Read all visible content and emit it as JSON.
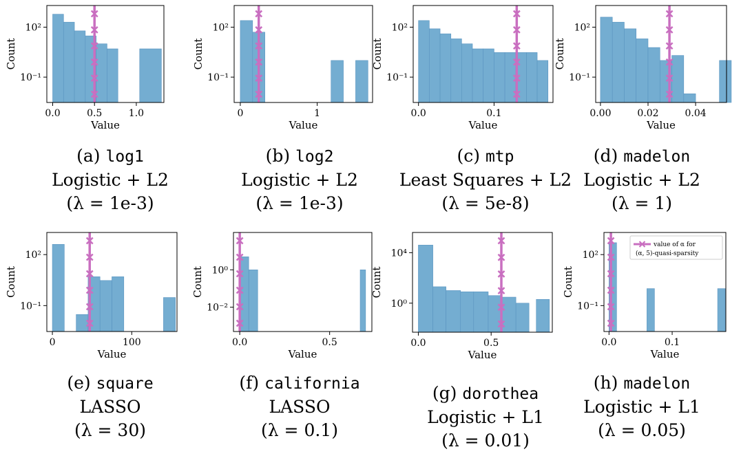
{
  "colors": {
    "bar": "#74add1",
    "bar_edge": "#5a94c0",
    "marker": "#c96fc0",
    "axis": "#000000"
  },
  "legend": {
    "line1": "value of α for",
    "line2": "(α, 5)-quasi-sparsity"
  },
  "chart_data": [
    {
      "type": "bar",
      "xlabel": "Value",
      "ylabel": "Count",
      "yscale": "log",
      "xlim": [
        -0.07,
        1.33
      ],
      "ylim": [
        0.003,
        2000
      ],
      "xticks": [
        0.0,
        0.5,
        1.0
      ],
      "xtick_labels": [
        "0.0",
        "0.5",
        "1.0"
      ],
      "yticks": [
        100,
        0.1
      ],
      "ytick_labels": [
        "10²",
        "10⁻¹"
      ],
      "bins": [
        [
          0.0,
          0.13,
          600
        ],
        [
          0.13,
          0.26,
          200
        ],
        [
          0.26,
          0.39,
          60
        ],
        [
          0.39,
          0.52,
          30
        ],
        [
          0.52,
          0.65,
          10
        ],
        [
          0.65,
          0.78,
          5
        ],
        [
          1.04,
          1.3,
          5
        ]
      ],
      "marker_x": 0.5,
      "caption": {
        "tag": "(a)",
        "name": "log1",
        "model": "Logistic + L2",
        "reg": "(λ = 1e-3)"
      }
    },
    {
      "type": "bar",
      "xlabel": "Value",
      "ylabel": "Count",
      "yscale": "log",
      "xlim": [
        -0.08,
        1.72
      ],
      "ylim": [
        0.003,
        2000
      ],
      "xticks": [
        0,
        1
      ],
      "xtick_labels": [
        "0",
        "1"
      ],
      "yticks": [
        100,
        0.1
      ],
      "ytick_labels": [
        "10²",
        "10⁻¹"
      ],
      "bins": [
        [
          0.0,
          0.16,
          250
        ],
        [
          0.16,
          0.32,
          50
        ],
        [
          1.18,
          1.34,
          1
        ],
        [
          1.5,
          1.66,
          1
        ]
      ],
      "marker_x": 0.24,
      "caption": {
        "tag": "(b)",
        "name": "log2",
        "model": "Logistic + L2",
        "reg": "(λ = 1e-3)"
      }
    },
    {
      "type": "bar",
      "xlabel": "Value",
      "ylabel": "Count",
      "yscale": "log",
      "xlim": [
        -0.007,
        0.178
      ],
      "ylim": [
        0.003,
        2000
      ],
      "xticks": [
        0.0,
        0.1
      ],
      "xtick_labels": [
        "0.0",
        "0.1"
      ],
      "yticks": [
        100,
        0.1
      ],
      "ytick_labels": [
        "10²",
        "10⁻¹"
      ],
      "bins": [
        [
          0.0,
          0.0143,
          250
        ],
        [
          0.0143,
          0.0286,
          80
        ],
        [
          0.0286,
          0.0429,
          40
        ],
        [
          0.0429,
          0.0571,
          20
        ],
        [
          0.0571,
          0.0714,
          10
        ],
        [
          0.0714,
          0.0857,
          5
        ],
        [
          0.0857,
          0.1,
          5
        ],
        [
          0.1,
          0.1143,
          3
        ],
        [
          0.1143,
          0.1286,
          3
        ],
        [
          0.1286,
          0.1429,
          3
        ],
        [
          0.1429,
          0.1571,
          3
        ],
        [
          0.1571,
          0.1714,
          1
        ]
      ],
      "marker_x": 0.13,
      "caption": {
        "tag": "(c)",
        "name": "mtp",
        "model": "Least Squares + L2",
        "reg": "(λ = 5e-8)"
      }
    },
    {
      "type": "bar",
      "xlabel": "Value",
      "ylabel": "Count",
      "yscale": "log",
      "xlim": [
        -0.002,
        0.053
      ],
      "ylim": [
        0.003,
        2000
      ],
      "xticks": [
        0.0,
        0.02,
        0.04
      ],
      "xtick_labels": [
        "0.00",
        "0.02",
        "0.04"
      ],
      "yticks": [
        100,
        0.1
      ],
      "ytick_labels": [
        "10²",
        "10⁻¹"
      ],
      "bins": [
        [
          0.0,
          0.005,
          400
        ],
        [
          0.005,
          0.01,
          200
        ],
        [
          0.01,
          0.015,
          80
        ],
        [
          0.015,
          0.02,
          20
        ],
        [
          0.02,
          0.025,
          6
        ],
        [
          0.025,
          0.03,
          1
        ],
        [
          0.03,
          0.035,
          2
        ],
        [
          0.035,
          0.04,
          0.01
        ],
        [
          0.05,
          0.055,
          1
        ]
      ],
      "marker_x": 0.029,
      "caption": {
        "tag": "(d)",
        "name": "madelon",
        "model": "Logistic + L2",
        "reg": "(λ = 1)"
      }
    },
    {
      "type": "bar",
      "xlabel": "Value",
      "ylabel": "Count",
      "yscale": "log",
      "xlim": [
        -7,
        157
      ],
      "ylim": [
        0.003,
        2000
      ],
      "xticks": [
        0,
        100
      ],
      "xtick_labels": [
        "0",
        "100"
      ],
      "yticks": [
        100,
        0.1
      ],
      "ytick_labels": [
        "10²",
        "10⁻¹"
      ],
      "bins": [
        [
          0,
          15,
          400
        ],
        [
          30,
          45,
          0.03
        ],
        [
          45,
          60,
          5
        ],
        [
          60,
          75,
          3
        ],
        [
          75,
          90,
          5
        ],
        [
          140,
          155,
          0.3
        ]
      ],
      "marker_x": 47,
      "caption": {
        "tag": "(e)",
        "name": "square",
        "model": "LASSO",
        "reg": "(λ = 30)"
      }
    },
    {
      "type": "bar",
      "xlabel": "Value",
      "ylabel": "Count",
      "yscale": "log",
      "xlim": [
        -0.035,
        0.735
      ],
      "ylim": [
        0.0005,
        100
      ],
      "xticks": [
        0.0,
        0.5
      ],
      "xtick_labels": [
        "0.0",
        "0.5"
      ],
      "yticks": [
        1,
        0.01
      ],
      "ytick_labels": [
        "10⁰",
        "10⁻²"
      ],
      "bins": [
        [
          0.0,
          0.05,
          5
        ],
        [
          0.05,
          0.1,
          1
        ],
        [
          0.67,
          0.7,
          1
        ]
      ],
      "marker_x": 0.0,
      "caption": {
        "tag": "(f)",
        "name": "california",
        "model": "LASSO",
        "reg": "(λ = 0.1)"
      }
    },
    {
      "type": "bar",
      "xlabel": "Value",
      "ylabel": "Count",
      "yscale": "log",
      "xlim": [
        -0.04,
        0.92
      ],
      "ylim": [
        0.005,
        400000
      ],
      "xticks": [
        0.0,
        0.5
      ],
      "xtick_labels": [
        "0.0",
        "0.5"
      ],
      "yticks": [
        10000,
        1
      ],
      "ytick_labels": [
        "10⁴",
        "10⁰"
      ],
      "bins": [
        [
          0.0,
          0.1,
          40000
        ],
        [
          0.1,
          0.19,
          20
        ],
        [
          0.19,
          0.29,
          10
        ],
        [
          0.29,
          0.38,
          8
        ],
        [
          0.38,
          0.48,
          8
        ],
        [
          0.48,
          0.57,
          4
        ],
        [
          0.57,
          0.67,
          3
        ],
        [
          0.67,
          0.76,
          1
        ],
        [
          0.81,
          0.9,
          2
        ]
      ],
      "marker_x": 0.57,
      "caption": {
        "tag": "(g)",
        "name": "dorothea",
        "model": "Logistic + L1",
        "reg": "(λ = 0.01)"
      }
    },
    {
      "type": "bar",
      "xlabel": "Value",
      "ylabel": "Count",
      "yscale": "log",
      "xlim": [
        -0.008,
        0.185
      ],
      "ylim": [
        0.003,
        2000
      ],
      "xticks": [
        0.0,
        0.1
      ],
      "xtick_labels": [
        "0.0",
        "0.1"
      ],
      "yticks": [
        100,
        0.1
      ],
      "ytick_labels": [
        "10²",
        "10⁻¹"
      ],
      "bins": [
        [
          0.0,
          0.012,
          500
        ],
        [
          0.06,
          0.072,
          1
        ],
        [
          0.172,
          0.184,
          1
        ]
      ],
      "marker_x": 0.003,
      "legend": true,
      "caption": {
        "tag": "(h)",
        "name": "madelon",
        "model": "Logistic + L1",
        "reg": "(λ = 0.05)"
      }
    }
  ]
}
